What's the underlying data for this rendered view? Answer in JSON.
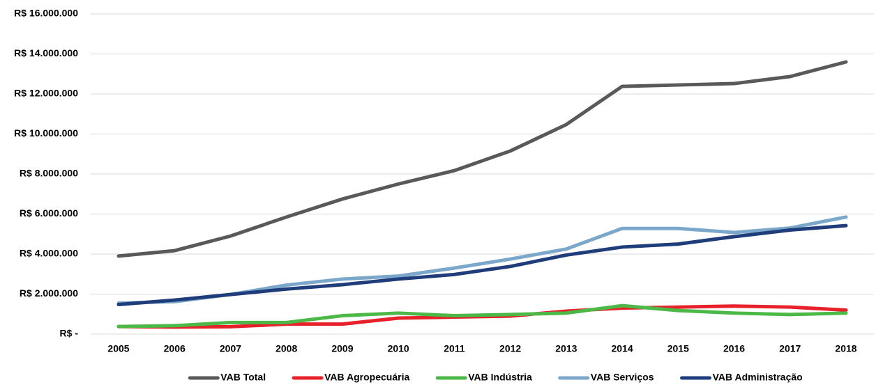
{
  "chart_data": {
    "type": "line",
    "categories": [
      "2005",
      "2006",
      "2007",
      "2008",
      "2009",
      "2010",
      "2011",
      "2012",
      "2013",
      "2014",
      "2015",
      "2016",
      "2017",
      "2018"
    ],
    "series": [
      {
        "name": "VAB Total",
        "color": "#595959",
        "values": [
          3900000,
          4170000,
          4900000,
          5850000,
          6750000,
          7500000,
          8170000,
          9150000,
          10470000,
          12380000,
          12450000,
          12520000,
          12870000,
          13600000
        ]
      },
      {
        "name": "VAB Agropecuária",
        "color": "#e8202a",
        "values": [
          380000,
          350000,
          370000,
          500000,
          500000,
          800000,
          850000,
          900000,
          1150000,
          1300000,
          1350000,
          1400000,
          1350000,
          1200000
        ]
      },
      {
        "name": "VAB Indústria",
        "color": "#4cb848",
        "values": [
          380000,
          420000,
          580000,
          580000,
          920000,
          1050000,
          920000,
          980000,
          1050000,
          1420000,
          1180000,
          1050000,
          980000,
          1050000
        ]
      },
      {
        "name": "VAB Serviços",
        "color": "#7ba7cb",
        "values": [
          1550000,
          1620000,
          1980000,
          2450000,
          2750000,
          2900000,
          3300000,
          3750000,
          4250000,
          5280000,
          5280000,
          5080000,
          5300000,
          5850000
        ]
      },
      {
        "name": "VAB Administração",
        "color": "#1f3d7a",
        "values": [
          1480000,
          1700000,
          1980000,
          2250000,
          2470000,
          2750000,
          2980000,
          3380000,
          3950000,
          4350000,
          4500000,
          4870000,
          5200000,
          5420000
        ]
      }
    ],
    "ylim": [
      0,
      16000000
    ],
    "yticks": [
      {
        "value": 0,
        "label": "R$ -"
      },
      {
        "value": 2000000,
        "label": "R$ 2.000.000"
      },
      {
        "value": 4000000,
        "label": "R$ 4.000.000"
      },
      {
        "value": 6000000,
        "label": "R$ 6.000.000"
      },
      {
        "value": 8000000,
        "label": "R$ 8.000.000"
      },
      {
        "value": 10000000,
        "label": "R$ 10.000.000"
      },
      {
        "value": 12000000,
        "label": "R$ 12.000.000"
      },
      {
        "value": 14000000,
        "label": "R$ 14.000.000"
      },
      {
        "value": 16000000,
        "label": "R$ 16.000.000"
      }
    ],
    "grid": true,
    "legend": "bottom"
  }
}
